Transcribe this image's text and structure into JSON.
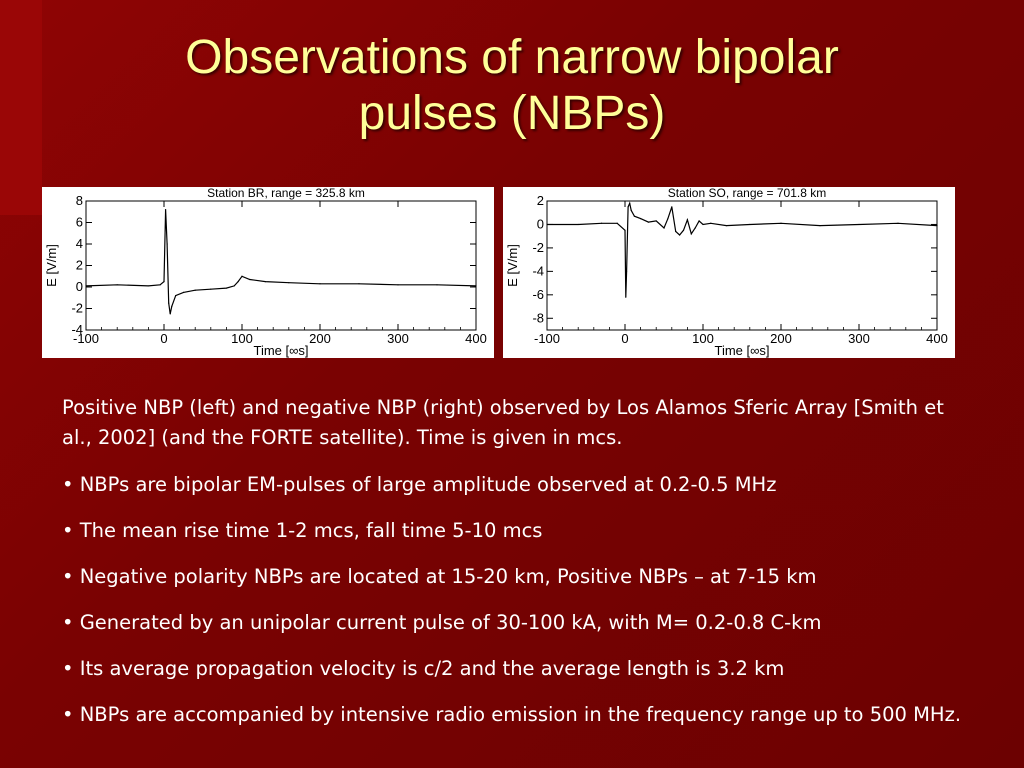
{
  "slide": {
    "title_line1": "Observations of narrow bipolar",
    "title_line2": "pulses (NBPs)",
    "caption": "Positive NBP (left) and negative NBP (right) observed by Los Alamos Sferic Array [Smith et al., 2002] (and the FORTE satellite). Time is given in mcs.",
    "bullets": [
      "• NBPs are bipolar EM-pulses of large amplitude observed at 0.2-0.5 MHz",
      "• The mean rise time 1-2 mcs, fall time 5-10 mcs",
      "• Negative polarity NBPs are located at 15-20 km, Positive NBPs – at 7-15 km",
      "• Generated by an unipolar current pulse of 30-100 kA, with M= 0.2-0.8 C-km",
      "• Its average propagation velocity is c/2 and the average length is 3.2 km",
      "• NBPs are accompanied by intensive radio emission in the frequency range up to  500 MHz."
    ]
  },
  "colors": {
    "background": "#7a0202",
    "title": "#ffff99",
    "text": "#ffffff"
  },
  "chart_data": [
    {
      "type": "line",
      "title": "Station BR, range = 325.8 km",
      "xlabel": "Time [∞s]",
      "ylabel": "E [V/m]",
      "xlim": [
        -100,
        400
      ],
      "ylim": [
        -4,
        8
      ],
      "xticks": [
        -100,
        0,
        100,
        200,
        300,
        400
      ],
      "yticks": [
        8,
        6,
        4,
        2,
        0,
        -2,
        -4
      ],
      "x": [
        -100,
        -60,
        -20,
        -5,
        0,
        2,
        4,
        6,
        8,
        10,
        15,
        25,
        40,
        60,
        80,
        90,
        95,
        100,
        110,
        130,
        160,
        200,
        250,
        300,
        350,
        400
      ],
      "y": [
        0.1,
        0.2,
        0.1,
        0.2,
        0.5,
        7.2,
        4,
        -1.5,
        -2.5,
        -1.8,
        -0.8,
        -0.5,
        -0.3,
        -0.2,
        -0.1,
        0.1,
        0.5,
        1,
        0.7,
        0.5,
        0.4,
        0.3,
        0.3,
        0.2,
        0.2,
        0.1
      ]
    },
    {
      "type": "line",
      "title": "Station SO, range = 701.8 km",
      "xlabel": "Time [∞s]",
      "ylabel": "E [V/m]",
      "xlim": [
        -100,
        400
      ],
      "ylim": [
        -9,
        2
      ],
      "xticks": [
        -100,
        0,
        100,
        200,
        300,
        400
      ],
      "yticks": [
        2,
        0,
        -2,
        -4,
        -6,
        -8
      ],
      "x": [
        -100,
        -60,
        -30,
        -10,
        0,
        1,
        2,
        4,
        6,
        8,
        12,
        20,
        30,
        40,
        50,
        55,
        60,
        65,
        70,
        75,
        80,
        85,
        90,
        95,
        100,
        110,
        130,
        160,
        200,
        250,
        300,
        350,
        400
      ],
      "y": [
        0,
        0,
        0.1,
        0.1,
        -0.5,
        -6.2,
        -4,
        1.5,
        1.8,
        1.2,
        0.7,
        0.5,
        0.2,
        0.3,
        -0.3,
        0.5,
        1.5,
        -0.6,
        -0.9,
        -0.5,
        0.4,
        -0.8,
        -0.3,
        0.3,
        0,
        0.1,
        -0.1,
        0,
        0.1,
        -0.1,
        0,
        0.1,
        -0.1
      ]
    }
  ]
}
